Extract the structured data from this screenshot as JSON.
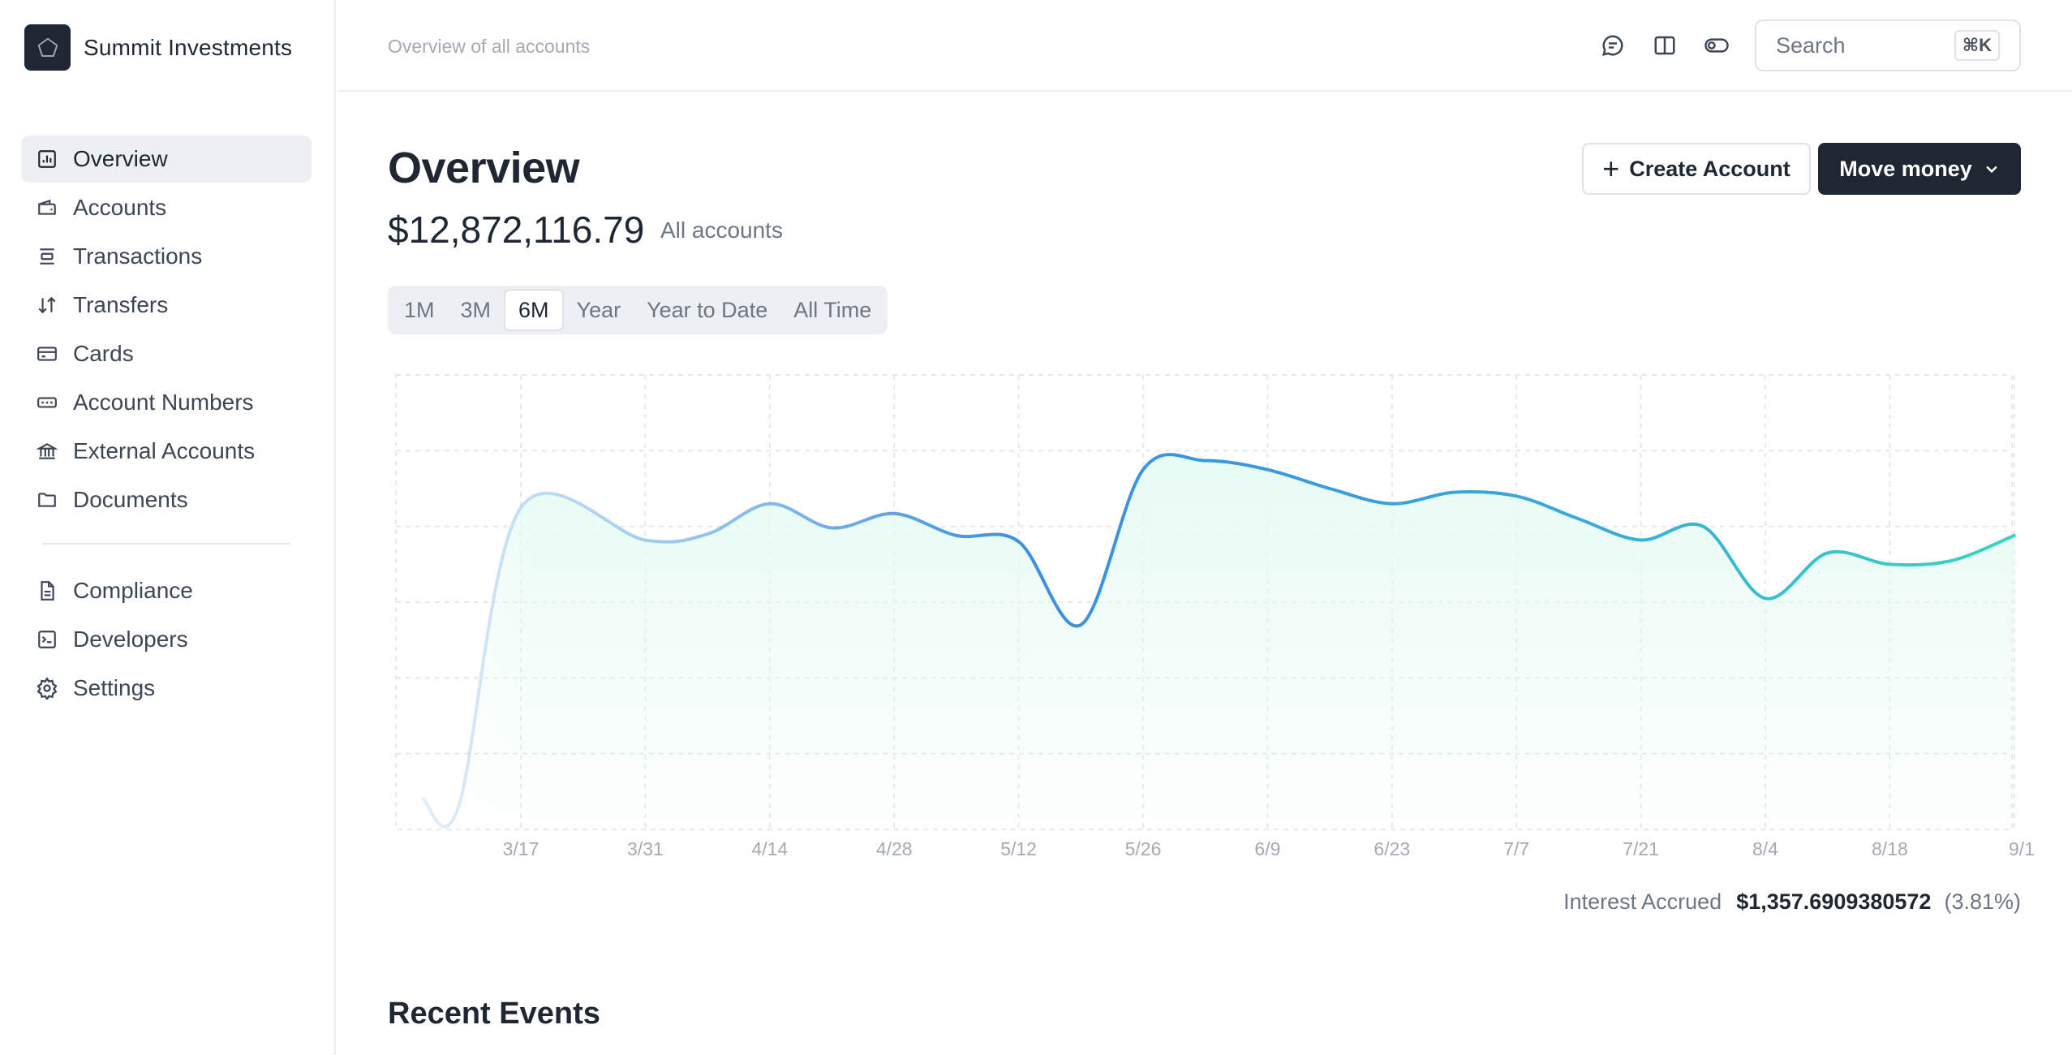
{
  "app": {
    "name": "Summit Investments"
  },
  "sidebar": {
    "items": [
      {
        "label": "Overview",
        "icon": "chart-bar-icon",
        "active": true
      },
      {
        "label": "Accounts",
        "icon": "wallet-icon"
      },
      {
        "label": "Transactions",
        "icon": "list-icon"
      },
      {
        "label": "Transfers",
        "icon": "arrows-up-down-icon"
      },
      {
        "label": "Cards",
        "icon": "credit-card-icon"
      },
      {
        "label": "Account Numbers",
        "icon": "dots-rectangle-icon"
      },
      {
        "label": "External Accounts",
        "icon": "bank-icon"
      },
      {
        "label": "Documents",
        "icon": "folder-icon"
      }
    ],
    "secondary": [
      {
        "label": "Compliance",
        "icon": "document-icon"
      },
      {
        "label": "Developers",
        "icon": "terminal-icon"
      },
      {
        "label": "Settings",
        "icon": "gear-icon"
      }
    ]
  },
  "header": {
    "breadcrumb": "Overview of all accounts",
    "search_placeholder": "Search",
    "shortcut": "⌘K",
    "icons": [
      "chat-icon",
      "book-icon",
      "toggle-icon"
    ]
  },
  "main": {
    "title": "Overview",
    "balance": "$12,872,116.79",
    "balance_label": "All accounts",
    "create_label": "Create Account",
    "move_label": "Move money",
    "ranges": [
      "1M",
      "3M",
      "6M",
      "Year",
      "Year to Date",
      "All Time"
    ],
    "active_range": "6M",
    "interest_label": "Interest Accrued",
    "interest_value": "$1,357.6909380572",
    "interest_pct": "(3.81%)",
    "recent_title": "Recent Events"
  },
  "chart_data": {
    "type": "area",
    "x_ticks": [
      "3/17",
      "3/31",
      "4/14",
      "4/28",
      "5/12",
      "5/26",
      "6/9",
      "6/23",
      "7/7",
      "7/21",
      "8/4",
      "8/18",
      "9/1"
    ],
    "ylim": [
      0,
      6
    ],
    "grid": true,
    "colors": {
      "start": "#3b8fe0",
      "mid": "#3aa6dc",
      "end": "#35d6c0",
      "fill": "#e6fbf3"
    },
    "points": [
      {
        "x": "3/6",
        "y": 0.4
      },
      {
        "x": "3/10",
        "y": 0.3
      },
      {
        "x": "3/17",
        "y": 4.25
      },
      {
        "x": "3/31",
        "y": 3.82
      },
      {
        "x": "4/7",
        "y": 3.9
      },
      {
        "x": "4/14",
        "y": 4.3
      },
      {
        "x": "4/21",
        "y": 3.98
      },
      {
        "x": "4/28",
        "y": 4.17
      },
      {
        "x": "5/5",
        "y": 3.88
      },
      {
        "x": "5/12",
        "y": 3.8
      },
      {
        "x": "5/19",
        "y": 2.7
      },
      {
        "x": "5/26",
        "y": 4.75
      },
      {
        "x": "6/2",
        "y": 4.87
      },
      {
        "x": "6/9",
        "y": 4.75
      },
      {
        "x": "6/16",
        "y": 4.5
      },
      {
        "x": "6/23",
        "y": 4.3
      },
      {
        "x": "6/30",
        "y": 4.45
      },
      {
        "x": "7/7",
        "y": 4.4
      },
      {
        "x": "7/14",
        "y": 4.1
      },
      {
        "x": "7/21",
        "y": 3.82
      },
      {
        "x": "7/28",
        "y": 4.0
      },
      {
        "x": "8/4",
        "y": 3.05
      },
      {
        "x": "8/11",
        "y": 3.65
      },
      {
        "x": "8/18",
        "y": 3.5
      },
      {
        "x": "8/25",
        "y": 3.55
      },
      {
        "x": "9/1",
        "y": 3.88
      }
    ]
  }
}
